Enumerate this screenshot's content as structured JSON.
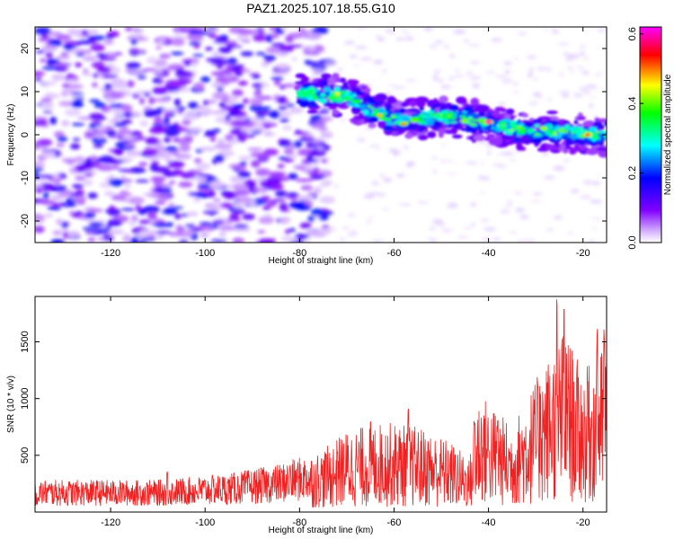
{
  "title": "PAZ1.2025.107.18.55.G10",
  "chart_data": [
    {
      "type": "heatmap",
      "xlabel": "Height of straight line (km)",
      "ylabel": "Frequency (Hz)",
      "xlim": [
        -136,
        -15
      ],
      "ylim": [
        -25,
        25
      ],
      "xticks": [
        -120,
        -100,
        -80,
        -60,
        -40,
        -20
      ],
      "yticks": [
        -20,
        -10,
        0,
        10,
        20
      ],
      "colorbar": {
        "label": "Normalized spectral amplitude",
        "range": [
          0.0,
          0.62
        ],
        "ticks": [
          0.0,
          0.2,
          0.4,
          0.6
        ],
        "colormap": "rainbow (white-violet-blue-cyan-green-yellow-red-magenta)"
      },
      "ridge": [
        {
          "x": -80,
          "y": 9.5
        },
        {
          "x": -70,
          "y": 9.0
        },
        {
          "x": -64,
          "y": 5.0
        },
        {
          "x": -58,
          "y": 3.0
        },
        {
          "x": -50,
          "y": 4.5
        },
        {
          "x": -42,
          "y": 3.0
        },
        {
          "x": -32,
          "y": 1.0
        },
        {
          "x": -22,
          "y": 0.5
        },
        {
          "x": -16,
          "y": 0.0
        }
      ],
      "ridge_peaks": [
        {
          "x": -72,
          "y": 9.5,
          "value": 0.45
        },
        {
          "x": -63,
          "y": 4.5,
          "value": 0.48
        },
        {
          "x": -58,
          "y": 2.5,
          "value": 0.5
        },
        {
          "x": -40,
          "y": 3.0,
          "value": 0.6
        },
        {
          "x": -19,
          "y": 0.0,
          "value": 0.55
        }
      ],
      "background": {
        "x_range": [
          -136,
          -78
        ],
        "y_range": [
          -25,
          25
        ],
        "value_range": [
          0.02,
          0.2
        ]
      }
    },
    {
      "type": "line",
      "xlabel": "Height of straight line (km)",
      "ylabel": "SNR (10 * v/v)",
      "xlim": [
        -136,
        -15
      ],
      "ylim": [
        0,
        1900
      ],
      "xticks": [
        -120,
        -100,
        -80,
        -60,
        -40,
        -20
      ],
      "yticks": [
        500,
        1000,
        1500
      ],
      "color": "#ee2222",
      "envelope": [
        {
          "x": -136,
          "y": 150
        },
        {
          "x": -110,
          "y": 150
        },
        {
          "x": -95,
          "y": 180
        },
        {
          "x": -85,
          "y": 220
        },
        {
          "x": -75,
          "y": 290
        },
        {
          "x": -70,
          "y": 380
        },
        {
          "x": -62,
          "y": 420
        },
        {
          "x": -55,
          "y": 400
        },
        {
          "x": -48,
          "y": 330
        },
        {
          "x": -44,
          "y": 250
        },
        {
          "x": -42,
          "y": 560
        },
        {
          "x": -35,
          "y": 400
        },
        {
          "x": -28,
          "y": 700
        },
        {
          "x": -24,
          "y": 850
        },
        {
          "x": -20,
          "y": 650
        },
        {
          "x": -15,
          "y": 800
        }
      ],
      "spikes": [
        {
          "x": -108,
          "y": 360
        },
        {
          "x": -82,
          "y": 420
        },
        {
          "x": -72,
          "y": 560
        },
        {
          "x": -65,
          "y": 800
        },
        {
          "x": -57,
          "y": 920
        },
        {
          "x": -43,
          "y": 820
        },
        {
          "x": -38,
          "y": 850
        },
        {
          "x": -29,
          "y": 1110
        },
        {
          "x": -25.5,
          "y": 1900
        },
        {
          "x": -24,
          "y": 1850
        },
        {
          "x": -23,
          "y": 1150
        },
        {
          "x": -19,
          "y": 1200
        },
        {
          "x": -17,
          "y": 1720
        },
        {
          "x": -15.5,
          "y": 1650
        }
      ]
    }
  ]
}
